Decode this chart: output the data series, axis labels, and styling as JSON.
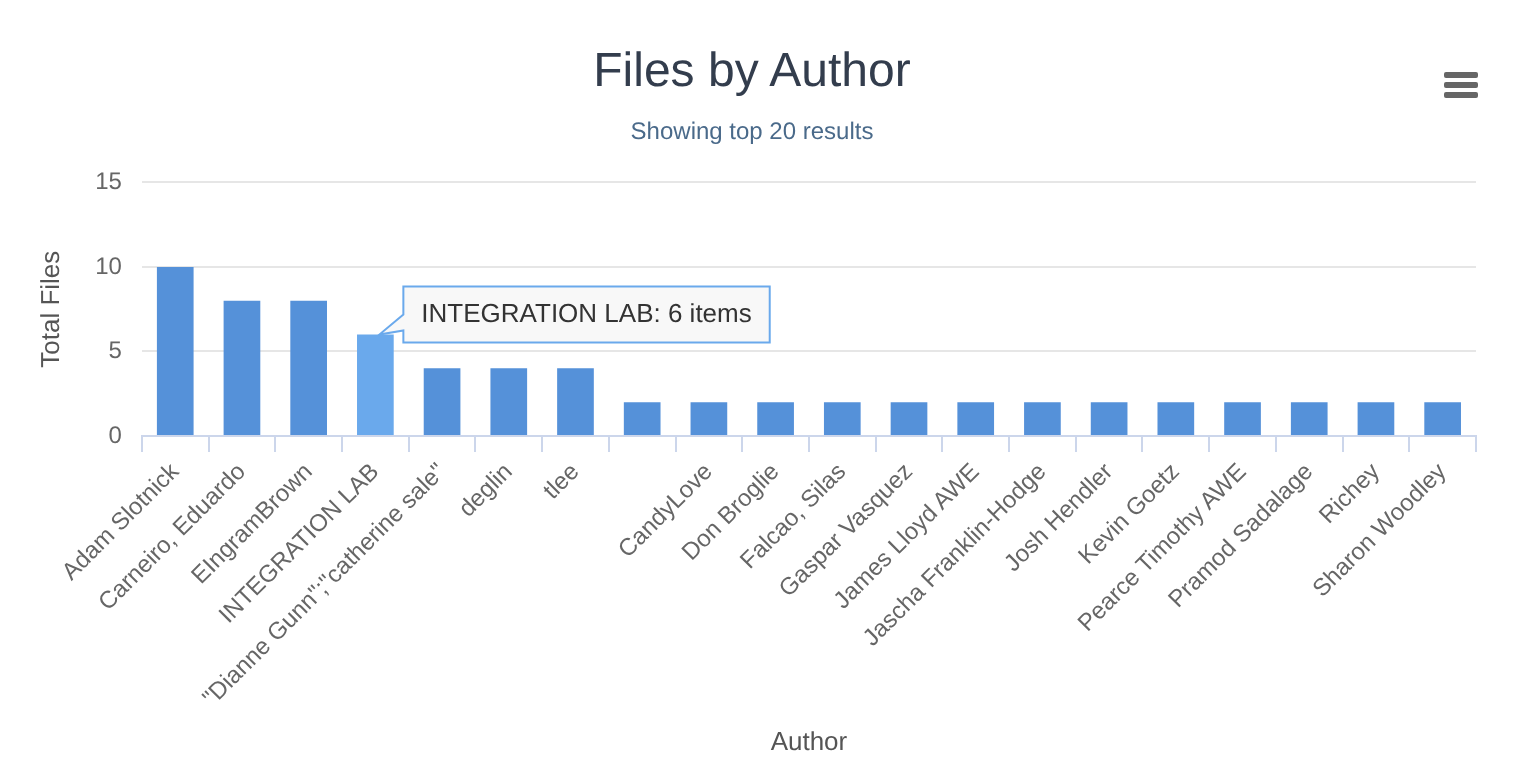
{
  "chart_data": {
    "type": "bar",
    "title": "Files by Author",
    "subtitle": "Showing top 20 results",
    "xlabel": "Author",
    "ylabel": "Total Files",
    "categories": [
      "Adam Slotnick",
      "Carneiro, Eduardo",
      "EIngramBrown",
      "INTEGRATION LAB",
      "\"Dianne Gunn\";\"catherine sale\"",
      "deglin",
      "tlee",
      null,
      "CandyLove",
      "Don Broglie",
      "Falcao, Silas",
      "Gaspar Vasquez",
      "James Lloyd AWE",
      "Jascha Franklin-Hodge",
      "Josh Hendler",
      "Kevin Goetz",
      "Pearce Timothy AWE",
      "Pramod Sadalage",
      "Richey",
      "Sharon Woodley"
    ],
    "values": [
      10,
      8,
      8,
      6,
      4,
      4,
      4,
      2,
      2,
      2,
      2,
      2,
      2,
      2,
      2,
      2,
      2,
      2,
      2,
      2
    ],
    "colors": [
      "#5591d9",
      "#5591d9",
      "#5591d9",
      "#6aa9ec",
      "#5591d9",
      "#5591d9",
      "#5591d9",
      "#5591d9",
      "#5591d9",
      "#5591d9",
      "#5591d9",
      "#5591d9",
      "#5591d9",
      "#5591d9",
      "#5591d9",
      "#5591d9",
      "#5591d9",
      "#5591d9",
      "#5591d9",
      "#5591d9"
    ],
    "ylim": [
      0,
      15
    ],
    "yticks": [
      0,
      5,
      10,
      15
    ],
    "grid": "y",
    "legend": false,
    "annotations": [
      {
        "text": "INTEGRATION LAB: 6 items",
        "x": "INTEGRATION LAB",
        "y": 6
      }
    ]
  }
}
